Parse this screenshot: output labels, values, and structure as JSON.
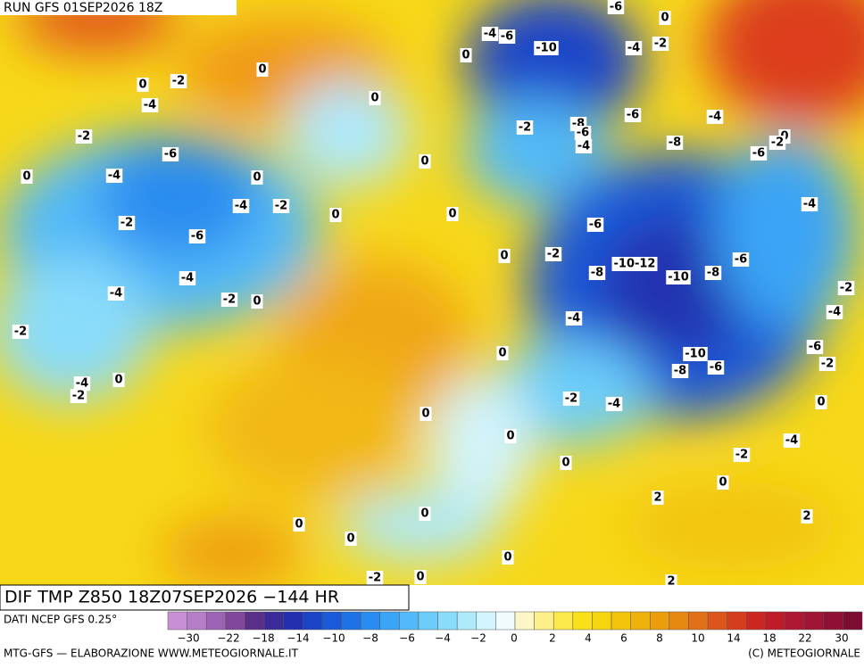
{
  "header": {
    "title": "RUN GFS 01SEP2026 18Z"
  },
  "map": {
    "contour_labels": [
      "-6",
      "0",
      "-4",
      "-6",
      "-10",
      "-4",
      "-2",
      "0",
      "0",
      "-2",
      "0",
      "0",
      "-4",
      "-8",
      "-6",
      "-6",
      "-4",
      "-2",
      "-2",
      "-4",
      "-8",
      "0",
      "-2",
      "-6",
      "-6",
      "0",
      "0",
      "-4",
      "0",
      "-4",
      "-2",
      "0",
      "0",
      "-4",
      "-2",
      "-6",
      "-6",
      "0",
      "-2",
      "-10-12",
      "-6",
      "-8",
      "-10",
      "-8",
      "-4",
      "-2",
      "0",
      "-4",
      "-2",
      "-4",
      "-4",
      "-2",
      "-6",
      "-10",
      "-2",
      "0",
      "-8",
      "-6",
      "-4",
      "0",
      "-2",
      "-2",
      "-4",
      "0",
      "0",
      "0",
      "-4",
      "0",
      "-2",
      "0",
      "2",
      "0",
      "0",
      "2",
      "0",
      "0",
      "-2",
      "0",
      "2"
    ]
  },
  "footer": {
    "panel_title": "DIF TMP Z850 18Z07SEP2026 −144 HR",
    "source": "DATI NCEP GFS 0.25°",
    "credit": "MTG-GFS — ELABORAZIONE WWW.METEOGIORNALE.IT",
    "copyright": "(C) METEOGIORNALE"
  },
  "colorbar": {
    "colors": [
      "#c98fd6",
      "#b57cc8",
      "#9c62b4",
      "#80479c",
      "#5a2f8a",
      "#3a2a9a",
      "#2230b0",
      "#1a44c8",
      "#1b5ad8",
      "#1e72e6",
      "#2a8cf0",
      "#3aa4f6",
      "#52baf8",
      "#6ccdfa",
      "#8adcfb",
      "#aee9fc",
      "#d2f4fd",
      "#f0fbfe",
      "#fdf7c8",
      "#fdf08a",
      "#fbe94a",
      "#f9e01a",
      "#f6d40e",
      "#f2c40c",
      "#eeb20c",
      "#ea9e0e",
      "#e68812",
      "#e27018",
      "#dc561c",
      "#d63c1e",
      "#cc2620",
      "#be1c28",
      "#ae1830",
      "#9e1434",
      "#8e1034",
      "#7c0c30"
    ],
    "labels": [
      "−30",
      "−22",
      "−18",
      "−14",
      "−10",
      "−8",
      "−6",
      "−4",
      "−2",
      "0",
      "2",
      "4",
      "6",
      "8",
      "10",
      "14",
      "18",
      "22",
      "30"
    ]
  }
}
